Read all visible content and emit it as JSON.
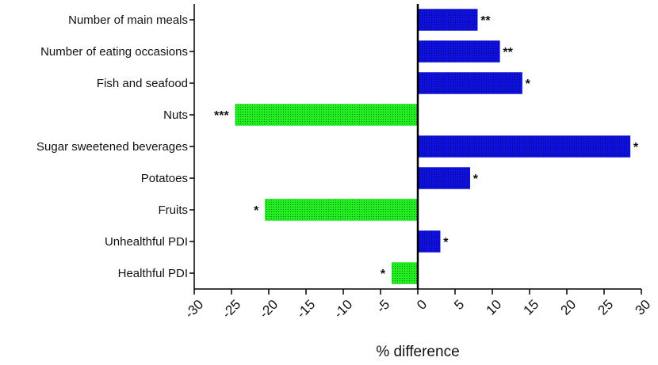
{
  "chart_data": {
    "type": "bar",
    "orientation": "horizontal",
    "title": "",
    "xlabel": "% difference",
    "ylabel": "",
    "xlim": [
      -30,
      30
    ],
    "xticks": [
      -30,
      -25,
      -20,
      -15,
      -10,
      -5,
      0,
      5,
      10,
      15,
      20,
      25,
      30
    ],
    "grid": false,
    "categories": [
      "Number of main meals",
      "Number of eating occasions",
      "Fish and seafood",
      "Nuts",
      "Sugar sweetened beverages",
      "Potatoes",
      "Fruits",
      "Unhealthful PDI",
      "Healthful PDI"
    ],
    "values": [
      8,
      11,
      14,
      -24.5,
      28.5,
      7,
      -20.5,
      3,
      -3.5
    ],
    "significance": [
      "**",
      "**",
      "*",
      "***",
      "*",
      "*",
      "*",
      "*",
      "*"
    ],
    "colors": {
      "positive": "#1010dd",
      "negative": "#22ee22",
      "axis": "#000000"
    }
  }
}
